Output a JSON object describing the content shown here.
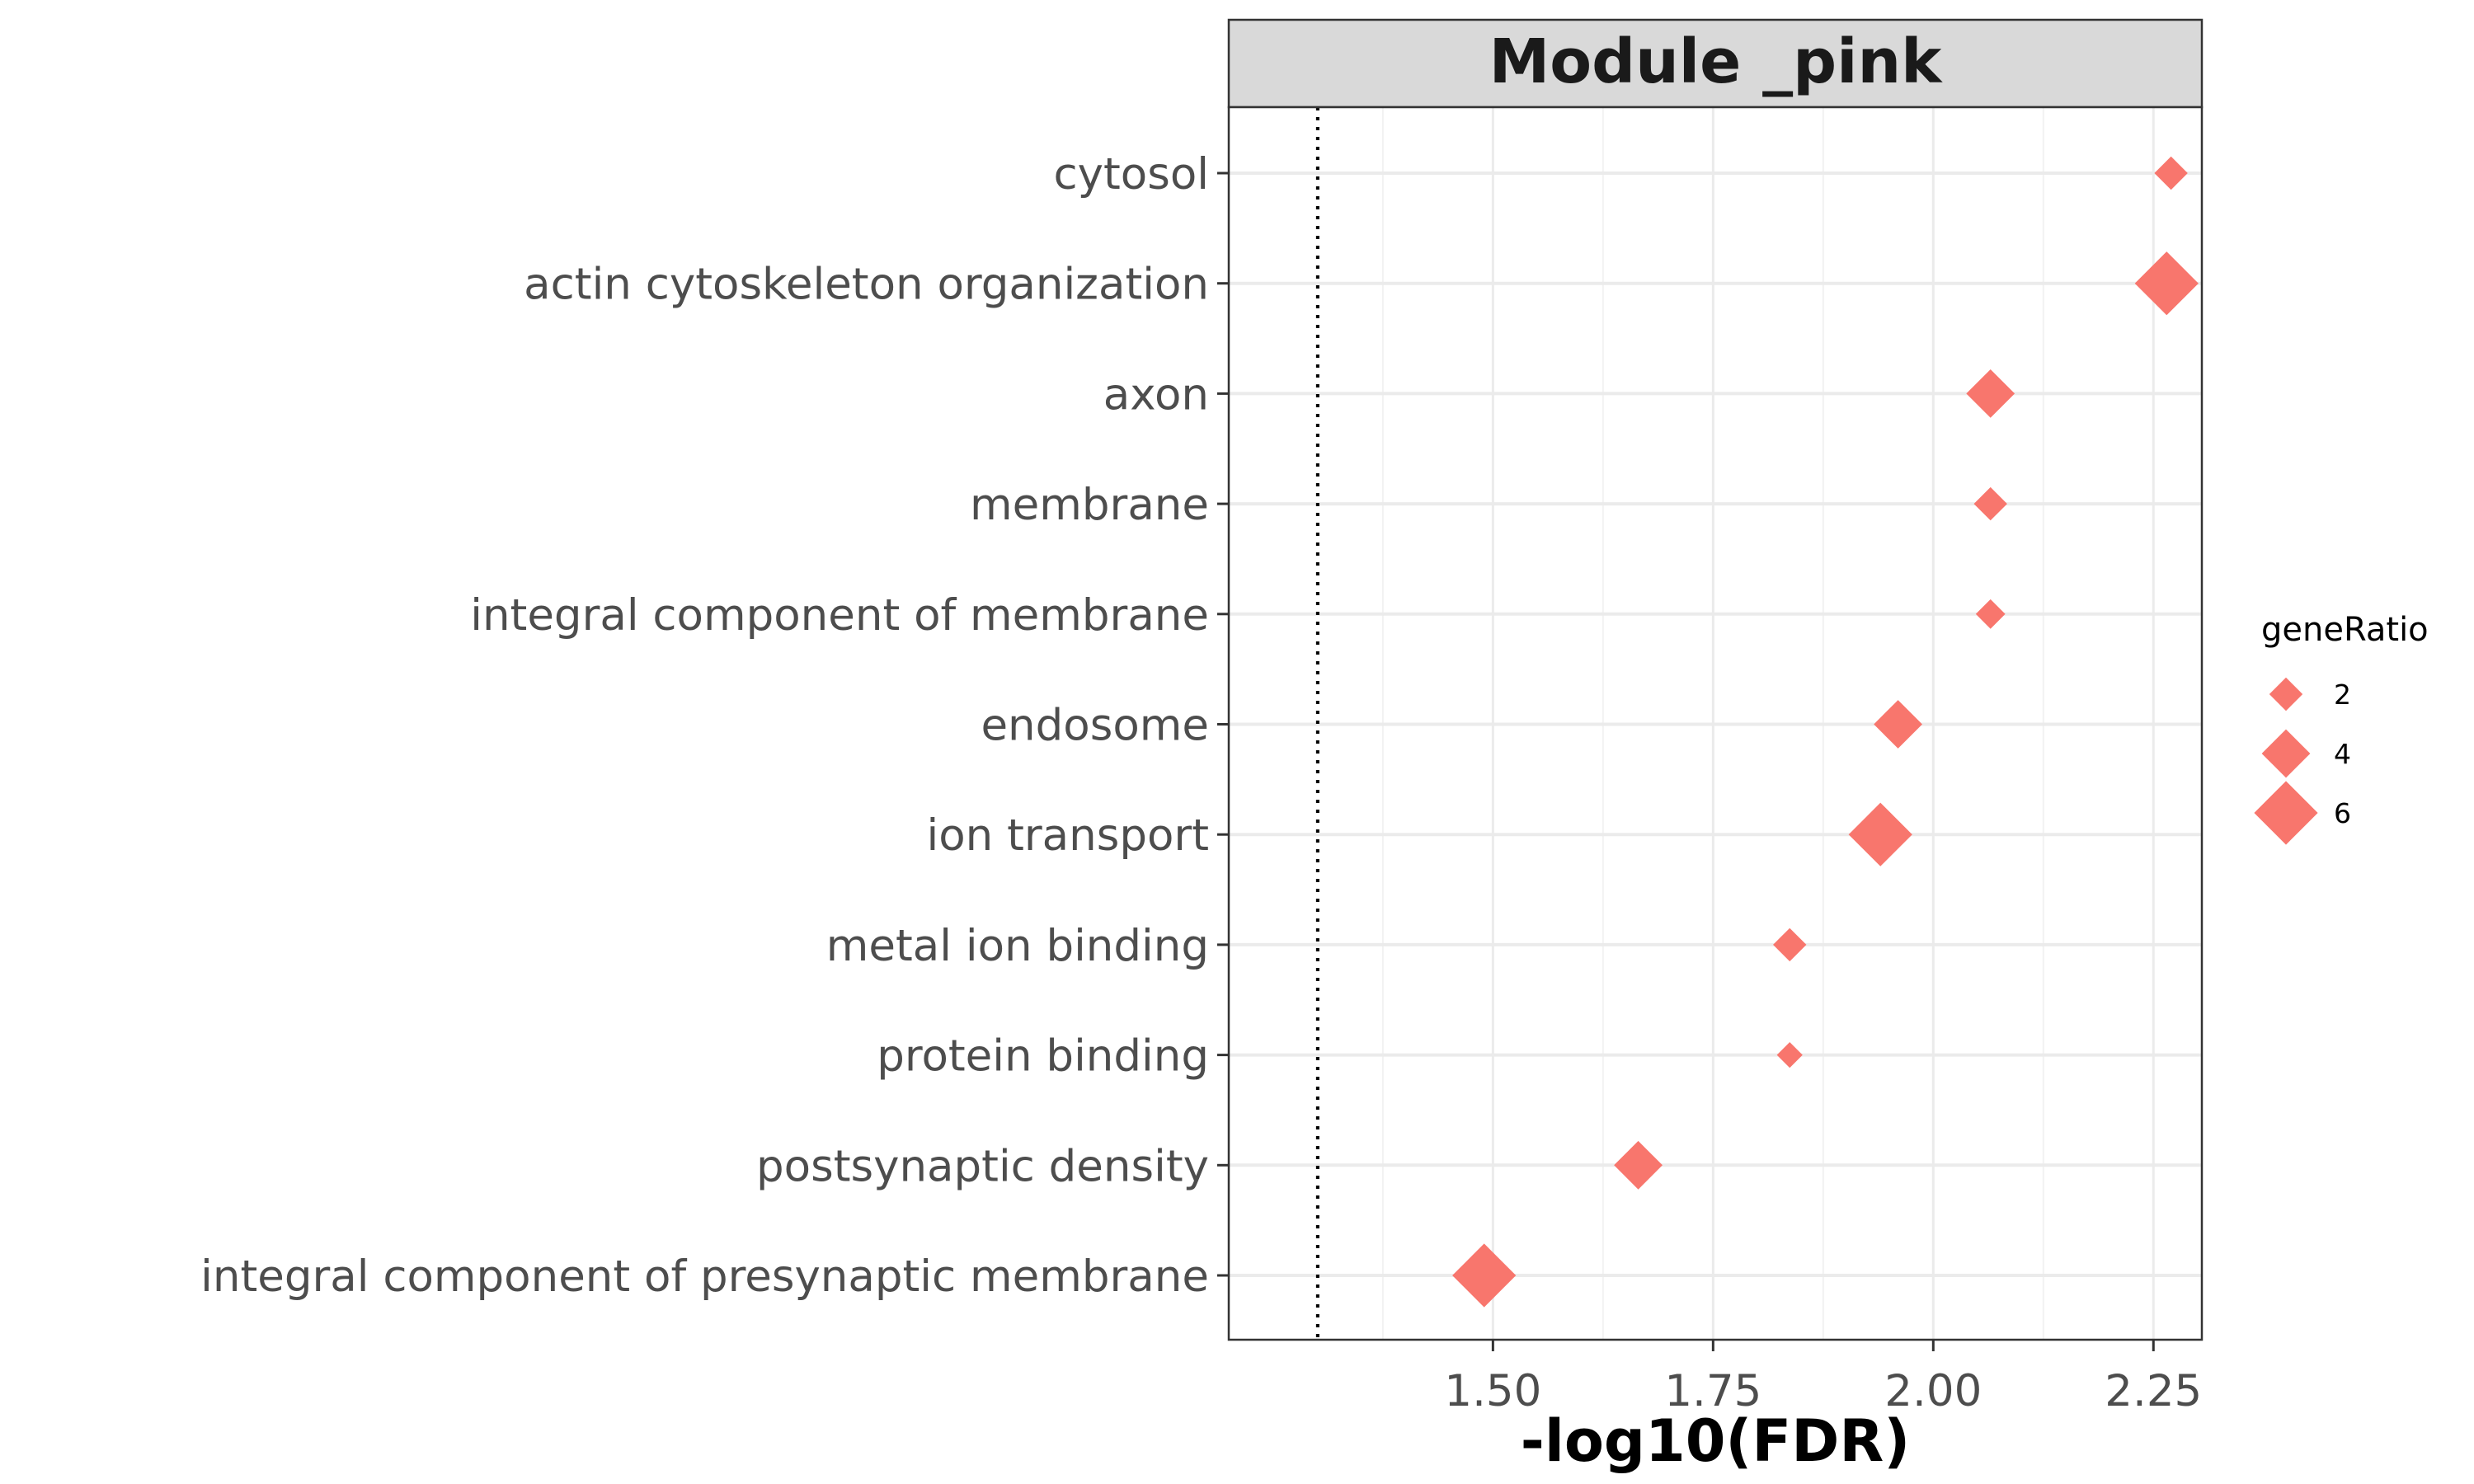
{
  "chart_data": {
    "type": "scatter",
    "title": "Module _pink",
    "xlabel": "-log10(FDR)",
    "ylabel": "",
    "xlim": [
      1.2,
      2.305
    ],
    "xticks": [
      1.5,
      1.75,
      2.0,
      2.25
    ],
    "xtick_labels": [
      "1.50",
      "1.75",
      "2.00",
      "2.25"
    ],
    "reference_line_x": 1.301,
    "grid": true,
    "marker": "diamond",
    "color": "#F8766D",
    "categories": [
      "cytosol",
      "actin cytoskeleton organization",
      "axon",
      "membrane",
      "integral component of membrane",
      "endosome",
      "ion transport",
      "metal ion binding",
      "protein binding",
      "postsynaptic density",
      "integral component of presynaptic membrane"
    ],
    "points": [
      {
        "category": "cytosol",
        "x": 2.27,
        "geneRatio": 2
      },
      {
        "category": "actin cytoskeleton organization",
        "x": 2.265,
        "geneRatio": 6
      },
      {
        "category": "axon",
        "x": 2.065,
        "geneRatio": 4
      },
      {
        "category": "membrane",
        "x": 2.065,
        "geneRatio": 2
      },
      {
        "category": "integral component of membrane",
        "x": 2.065,
        "geneRatio": 1.5
      },
      {
        "category": "endosome",
        "x": 1.96,
        "geneRatio": 4
      },
      {
        "category": "ion transport",
        "x": 1.94,
        "geneRatio": 6
      },
      {
        "category": "metal ion binding",
        "x": 1.837,
        "geneRatio": 2
      },
      {
        "category": "protein binding",
        "x": 1.837,
        "geneRatio": 1
      },
      {
        "category": "postsynaptic density",
        "x": 1.665,
        "geneRatio": 4
      },
      {
        "category": "integral component of presynaptic membrane",
        "x": 1.49,
        "geneRatio": 6
      }
    ],
    "legend": {
      "title": "geneRatio",
      "placement": "right",
      "entries": [
        {
          "label": "2",
          "value": 2
        },
        {
          "label": "4",
          "value": 4
        },
        {
          "label": "6",
          "value": 6
        }
      ]
    }
  }
}
